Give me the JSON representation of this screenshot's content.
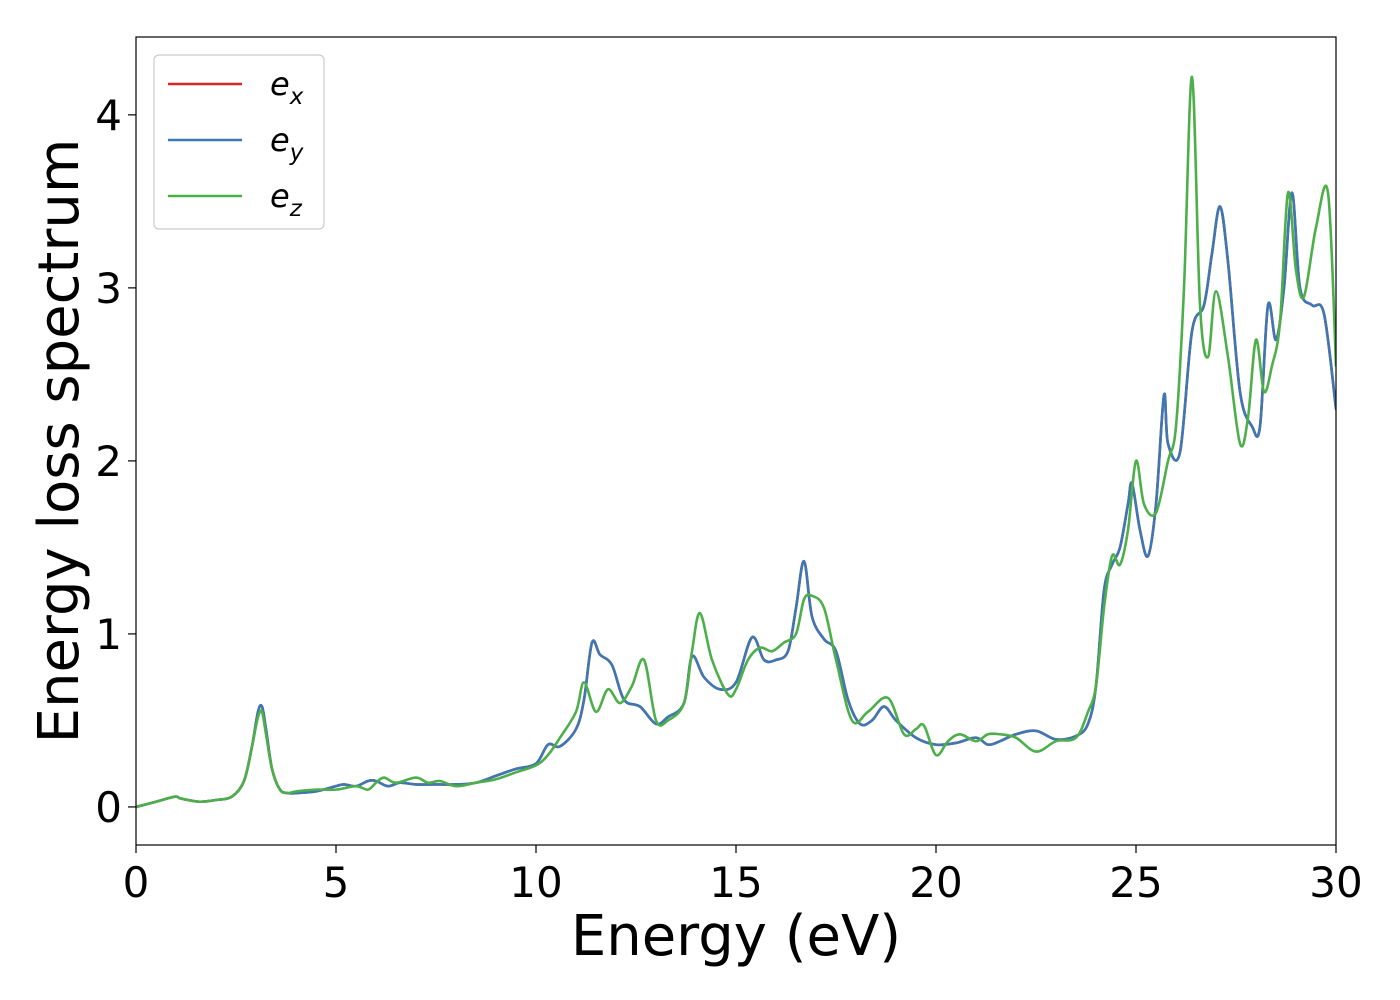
{
  "chart_data": {
    "type": "line",
    "title": "",
    "xlabel": "Energy (eV)",
    "ylabel": "Energy loss spectrum",
    "xlim": [
      0,
      30
    ],
    "ylim": [
      -0.22,
      4.45
    ],
    "xticks": [
      0,
      5,
      10,
      15,
      20,
      25,
      30
    ],
    "yticks": [
      0,
      1,
      2,
      3,
      4
    ],
    "grid": false,
    "legend_position": "top-left",
    "series": [
      {
        "name": "e_x",
        "legend_base": "e",
        "legend_sub": "x",
        "color": "#d62728",
        "x": [
          0,
          0.5,
          0.8,
          1.0,
          1.1,
          1.3,
          1.6,
          2.0,
          2.4,
          2.7,
          2.9,
          3.05,
          3.15,
          3.25,
          3.4,
          3.6,
          3.8,
          4.0,
          4.5,
          5.0,
          5.2,
          5.5,
          5.8,
          6.0,
          6.3,
          6.6,
          7.0,
          7.5,
          8.0,
          8.5,
          9.0,
          9.5,
          10.0,
          10.3,
          10.6,
          11.0,
          11.2,
          11.4,
          11.6,
          11.9,
          12.2,
          12.6,
          13.0,
          13.3,
          13.7,
          13.9,
          14.2,
          14.6,
          15.0,
          15.4,
          15.7,
          16.0,
          16.3,
          16.5,
          16.7,
          16.9,
          17.2,
          17.5,
          17.8,
          18.1,
          18.4,
          18.7,
          19.0,
          19.5,
          20.0,
          20.5,
          21.0,
          21.3,
          21.6,
          22.0,
          22.5,
          23.0,
          23.5,
          23.8,
          24.0,
          24.2,
          24.4,
          24.6,
          24.8,
          24.9,
          25.1,
          25.3,
          25.5,
          25.7,
          25.8,
          26.1,
          26.4,
          26.7,
          26.9,
          27.1,
          27.3,
          27.6,
          27.9,
          28.1,
          28.3,
          28.5,
          28.7,
          28.9,
          29.1,
          29.4,
          29.7,
          30.0
        ],
        "values": [
          0,
          0.03,
          0.05,
          0.06,
          0.05,
          0.04,
          0.03,
          0.04,
          0.06,
          0.15,
          0.35,
          0.55,
          0.58,
          0.45,
          0.22,
          0.1,
          0.08,
          0.08,
          0.09,
          0.12,
          0.13,
          0.12,
          0.15,
          0.15,
          0.12,
          0.14,
          0.13,
          0.13,
          0.13,
          0.14,
          0.18,
          0.22,
          0.25,
          0.36,
          0.35,
          0.45,
          0.62,
          0.95,
          0.88,
          0.82,
          0.62,
          0.58,
          0.48,
          0.52,
          0.6,
          0.87,
          0.75,
          0.68,
          0.72,
          0.98,
          0.85,
          0.85,
          0.9,
          1.15,
          1.42,
          1.1,
          0.97,
          0.9,
          0.62,
          0.48,
          0.5,
          0.58,
          0.5,
          0.4,
          0.36,
          0.37,
          0.4,
          0.36,
          0.38,
          0.42,
          0.44,
          0.39,
          0.41,
          0.48,
          0.7,
          1.25,
          1.4,
          1.5,
          1.75,
          1.87,
          1.6,
          1.45,
          1.75,
          2.38,
          2.1,
          2.05,
          2.75,
          2.9,
          3.2,
          3.47,
          3.15,
          2.4,
          2.2,
          2.2,
          2.9,
          2.7,
          3.0,
          3.55,
          3.0,
          2.9,
          2.85,
          2.3
        ]
      },
      {
        "name": "e_y",
        "legend_base": "e",
        "legend_sub": "y",
        "color": "#3c78b4",
        "x": [
          0,
          0.5,
          0.8,
          1.0,
          1.1,
          1.3,
          1.6,
          2.0,
          2.4,
          2.7,
          2.9,
          3.05,
          3.15,
          3.25,
          3.4,
          3.6,
          3.8,
          4.0,
          4.5,
          5.0,
          5.2,
          5.5,
          5.8,
          6.0,
          6.3,
          6.6,
          7.0,
          7.5,
          8.0,
          8.5,
          9.0,
          9.5,
          10.0,
          10.3,
          10.6,
          11.0,
          11.2,
          11.4,
          11.6,
          11.9,
          12.2,
          12.6,
          13.0,
          13.3,
          13.7,
          13.9,
          14.2,
          14.6,
          15.0,
          15.4,
          15.7,
          16.0,
          16.3,
          16.5,
          16.7,
          16.9,
          17.2,
          17.5,
          17.8,
          18.1,
          18.4,
          18.7,
          19.0,
          19.5,
          20.0,
          20.5,
          21.0,
          21.3,
          21.6,
          22.0,
          22.5,
          23.0,
          23.5,
          23.8,
          24.0,
          24.2,
          24.4,
          24.6,
          24.8,
          24.9,
          25.1,
          25.3,
          25.5,
          25.7,
          25.8,
          26.1,
          26.4,
          26.7,
          26.9,
          27.1,
          27.3,
          27.6,
          27.9,
          28.1,
          28.3,
          28.5,
          28.7,
          28.9,
          29.1,
          29.4,
          29.7,
          30.0
        ],
        "values": [
          0,
          0.03,
          0.05,
          0.06,
          0.05,
          0.04,
          0.03,
          0.04,
          0.06,
          0.15,
          0.35,
          0.55,
          0.58,
          0.45,
          0.22,
          0.1,
          0.08,
          0.08,
          0.09,
          0.12,
          0.13,
          0.12,
          0.15,
          0.15,
          0.12,
          0.14,
          0.13,
          0.13,
          0.13,
          0.14,
          0.18,
          0.22,
          0.25,
          0.36,
          0.35,
          0.45,
          0.62,
          0.95,
          0.88,
          0.82,
          0.62,
          0.58,
          0.48,
          0.52,
          0.6,
          0.87,
          0.75,
          0.68,
          0.72,
          0.98,
          0.85,
          0.85,
          0.9,
          1.15,
          1.42,
          1.1,
          0.97,
          0.9,
          0.62,
          0.48,
          0.5,
          0.58,
          0.5,
          0.4,
          0.36,
          0.37,
          0.4,
          0.36,
          0.38,
          0.42,
          0.44,
          0.39,
          0.41,
          0.48,
          0.7,
          1.25,
          1.4,
          1.5,
          1.75,
          1.87,
          1.6,
          1.45,
          1.75,
          2.38,
          2.1,
          2.05,
          2.75,
          2.9,
          3.2,
          3.47,
          3.15,
          2.4,
          2.2,
          2.2,
          2.9,
          2.7,
          3.0,
          3.55,
          3.0,
          2.9,
          2.85,
          2.3
        ]
      },
      {
        "name": "e_z",
        "legend_base": "e",
        "legend_sub": "z",
        "color": "#4daf4a",
        "x": [
          0,
          0.5,
          0.8,
          1.0,
          1.1,
          1.3,
          1.6,
          2.0,
          2.4,
          2.7,
          2.9,
          3.05,
          3.15,
          3.25,
          3.4,
          3.6,
          3.8,
          4.0,
          4.5,
          5.0,
          5.5,
          5.8,
          6.0,
          6.2,
          6.5,
          7.0,
          7.3,
          7.6,
          8.0,
          8.5,
          9.0,
          9.5,
          10.0,
          10.3,
          10.6,
          11.0,
          11.2,
          11.5,
          11.8,
          12.1,
          12.4,
          12.7,
          13.0,
          13.3,
          13.7,
          13.9,
          14.1,
          14.4,
          14.8,
          15.0,
          15.3,
          15.6,
          15.9,
          16.2,
          16.5,
          16.7,
          16.9,
          17.2,
          17.5,
          17.9,
          18.3,
          18.8,
          19.2,
          19.5,
          19.7,
          20.0,
          20.3,
          20.6,
          21.0,
          21.3,
          21.6,
          22.0,
          22.5,
          23.0,
          23.5,
          23.8,
          24.0,
          24.2,
          24.4,
          24.6,
          24.8,
          25.0,
          25.2,
          25.5,
          25.8,
          26.0,
          26.2,
          26.4,
          26.6,
          26.8,
          27.0,
          27.3,
          27.6,
          27.8,
          28.0,
          28.2,
          28.4,
          28.6,
          28.8,
          29.0,
          29.2,
          29.5,
          29.8,
          30.0
        ],
        "values": [
          0,
          0.03,
          0.05,
          0.06,
          0.05,
          0.04,
          0.03,
          0.04,
          0.06,
          0.15,
          0.35,
          0.52,
          0.55,
          0.42,
          0.22,
          0.1,
          0.08,
          0.09,
          0.1,
          0.1,
          0.12,
          0.1,
          0.14,
          0.17,
          0.14,
          0.17,
          0.14,
          0.15,
          0.12,
          0.14,
          0.16,
          0.2,
          0.24,
          0.3,
          0.4,
          0.55,
          0.72,
          0.55,
          0.68,
          0.6,
          0.7,
          0.85,
          0.5,
          0.5,
          0.6,
          0.9,
          1.12,
          0.85,
          0.65,
          0.68,
          0.85,
          0.92,
          0.9,
          0.95,
          1.0,
          1.2,
          1.22,
          1.15,
          0.85,
          0.5,
          0.55,
          0.63,
          0.42,
          0.45,
          0.47,
          0.3,
          0.38,
          0.42,
          0.38,
          0.42,
          0.42,
          0.4,
          0.32,
          0.38,
          0.4,
          0.55,
          0.7,
          1.15,
          1.45,
          1.4,
          1.6,
          2.0,
          1.75,
          1.7,
          2.0,
          2.2,
          3.0,
          4.22,
          2.9,
          2.6,
          2.98,
          2.6,
          2.1,
          2.25,
          2.7,
          2.4,
          2.55,
          2.8,
          3.55,
          3.1,
          2.95,
          3.35,
          3.55,
          2.55
        ]
      }
    ]
  }
}
